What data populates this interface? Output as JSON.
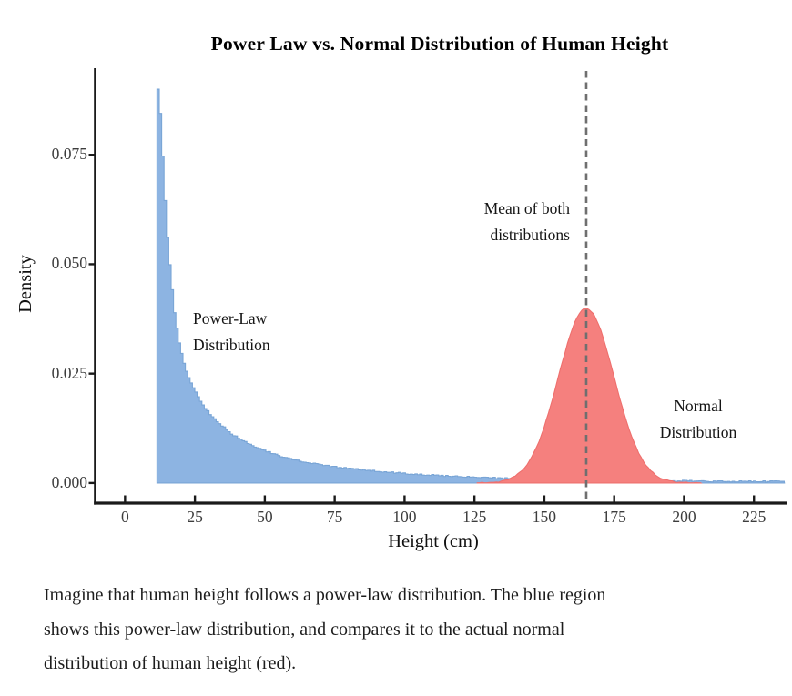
{
  "title": "Power Law vs. Normal Distribution of Human Height",
  "caption": {
    "lines": [
      "Imagine that human height follows a power-law distribution. The blue region",
      "shows this power-law distribution, and compares it to the actual normal",
      "distribution of human height (red)."
    ]
  },
  "chart_data": {
    "type": "area",
    "title": "Power Law vs. Normal Distribution of Human Height",
    "xlabel": "Height (cm)",
    "ylabel": "Density",
    "x_ticks": [
      0,
      25,
      50,
      75,
      100,
      125,
      150,
      175,
      200,
      225
    ],
    "y_ticks": [
      0,
      0.025,
      0.05,
      0.075
    ],
    "x_range": [
      -10.7,
      236
    ],
    "y_range": [
      -0.0046,
      0.0948
    ],
    "grid": false,
    "legend_position": "none",
    "axis_color": "#1a1a1a",
    "mean_line": {
      "x": 165,
      "color": "#6f6f6f",
      "label_lines": [
        "Mean of both",
        "distributions"
      ]
    },
    "series": [
      {
        "name": "Power-Law Distribution",
        "label_lines": [
          "Power-Law",
          "Distribution"
        ],
        "type": "power_law_histogram",
        "fill_color": "#8db4e2",
        "edge_color": "#79a5d6",
        "samples_cm_density": [
          [
            11.4,
            0.09
          ],
          [
            12.2,
            0.085
          ],
          [
            13.0,
            0.076
          ],
          [
            13.8,
            0.066
          ],
          [
            14.8,
            0.056
          ],
          [
            16.0,
            0.047
          ],
          [
            17.3,
            0.039
          ],
          [
            18.7,
            0.033
          ],
          [
            20.3,
            0.0283
          ],
          [
            22.1,
            0.0246
          ],
          [
            24.3,
            0.0214
          ],
          [
            26.8,
            0.0186
          ],
          [
            29.8,
            0.0158
          ],
          [
            33.4,
            0.0136
          ],
          [
            37.6,
            0.0113
          ],
          [
            42.5,
            0.0094
          ],
          [
            48.2,
            0.0077
          ],
          [
            54.8,
            0.0062
          ],
          [
            62.4,
            0.005
          ],
          [
            71.2,
            0.004
          ],
          [
            81.3,
            0.0032
          ],
          [
            92.9,
            0.0025
          ],
          [
            106.2,
            0.0019
          ],
          [
            121.5,
            0.0014
          ],
          [
            139.0,
            0.001
          ],
          [
            159.1,
            0.0008
          ],
          [
            182.1,
            0.0006
          ],
          [
            208.5,
            0.0004
          ],
          [
            235.9,
            0.0003
          ]
        ]
      },
      {
        "name": "Normal Distribution",
        "label_lines": [
          "Normal",
          "Distribution"
        ],
        "type": "normal",
        "fill_color": "#f5807e",
        "edge_color": "#ee6f6d",
        "mean": 165,
        "std": 10,
        "peak_density": 0.0399,
        "draw_range_cm": [
          126,
          206
        ]
      }
    ]
  }
}
